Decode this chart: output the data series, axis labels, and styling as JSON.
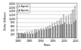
{
  "title": "",
  "xlabel": "Years",
  "ylabel": "Dollar (billions)",
  "years": [
    1980,
    1981,
    1982,
    1983,
    1984,
    1985,
    1986,
    1987,
    1988,
    1989,
    1990,
    1991,
    1992,
    1993,
    1994,
    1995,
    1996,
    1997,
    1998,
    1999,
    2000,
    2001,
    2002,
    2003,
    2004,
    2005
  ],
  "imports": [
    257,
    265,
    248,
    269,
    341,
    338,
    368,
    410,
    447,
    477,
    498,
    491,
    536,
    589,
    669,
    749,
    803,
    876,
    918,
    1030,
    1224,
    1146,
    1167,
    1264,
    1473,
    1673
  ],
  "exports": [
    225,
    237,
    212,
    201,
    220,
    215,
    223,
    252,
    320,
    363,
    394,
    422,
    448,
    465,
    513,
    584,
    625,
    689,
    682,
    696,
    782,
    730,
    694,
    724,
    818,
    908
  ],
  "imports_color": "#cccccc",
  "exports_color": "#888888",
  "imports_label": "Imports",
  "exports_label": "Exports",
  "ylim": [
    0,
    1800
  ],
  "ytick_values": [
    0,
    200,
    400,
    600,
    800,
    1000,
    1200,
    1400,
    1600,
    1800
  ],
  "ytick_labels": [
    "",
    "200",
    "400",
    "600",
    "800",
    "1,000",
    "1,200",
    "1,400",
    "1,600",
    "1,800"
  ],
  "background_color": "#ffffff",
  "legend_loc": "upper left",
  "bar_width": 0.38,
  "figwidth": 1.0,
  "figheight": 0.62,
  "dpi": 100
}
